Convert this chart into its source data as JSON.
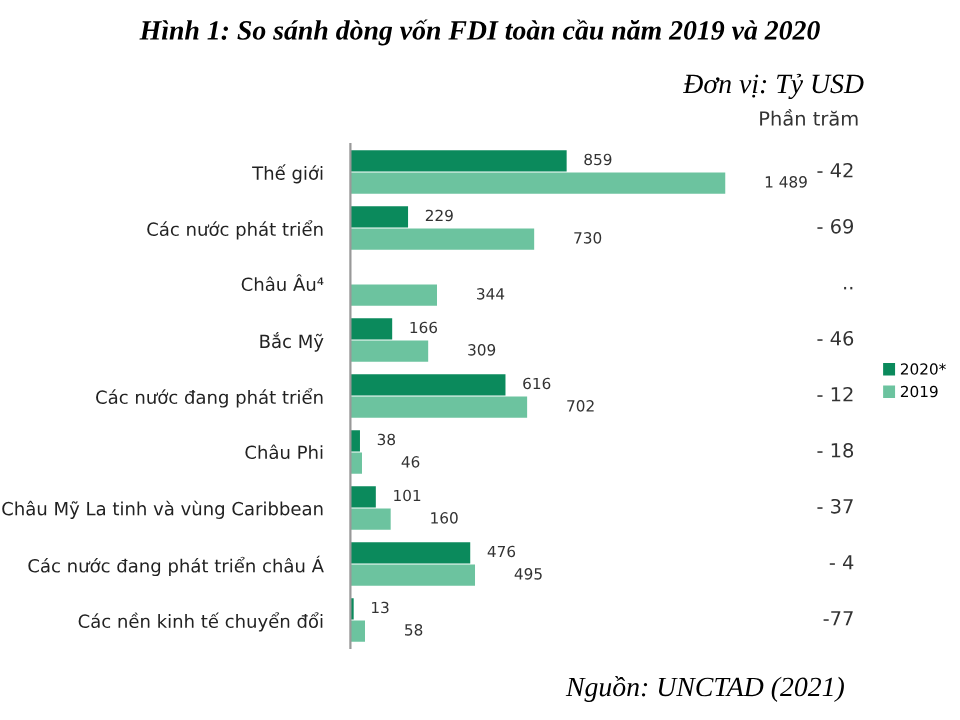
{
  "chart_data": {
    "type": "bar",
    "orientation": "horizontal",
    "title": "Hình 1: So sánh dòng vốn FDI toàn cầu năm 2019 và 2020",
    "subtitle": "Đơn vị: Tỷ USD",
    "categories": [
      "Thế giới",
      "Các nước phát triển",
      "Châu Âu⁴",
      "Bắc Mỹ",
      "Các nước đang phát triển",
      "Châu Phi",
      "Châu Mỹ La tinh và vùng Caribbean",
      "Các nước đang phát triển châu Á",
      "Các nền kinh tế chuyển đổi"
    ],
    "series": [
      {
        "name": "2020*",
        "color": "#0b8a5c",
        "values": [
          859,
          229,
          null,
          166,
          616,
          38,
          101,
          476,
          13
        ],
        "value_labels": [
          "859",
          "229",
          null,
          "166",
          "616",
          "38",
          "101",
          "476",
          "13"
        ]
      },
      {
        "name": "2019",
        "color": "#6cc39f",
        "values": [
          1489,
          730,
          344,
          309,
          702,
          46,
          160,
          495,
          58
        ],
        "value_labels": [
          "1 489",
          "730",
          "344",
          "309",
          "702",
          "46",
          "160",
          "495",
          "58"
        ]
      }
    ],
    "tick_labels": "y",
    "legend": "right",
    "annotations": [
      "Phần trăm",
      "- 42",
      "- 69",
      "..",
      "- 46",
      "- 12",
      "- 18",
      "- 37",
      "- 4",
      "-77",
      "Nguồn: UNCTAD (2021)"
    ]
  }
}
